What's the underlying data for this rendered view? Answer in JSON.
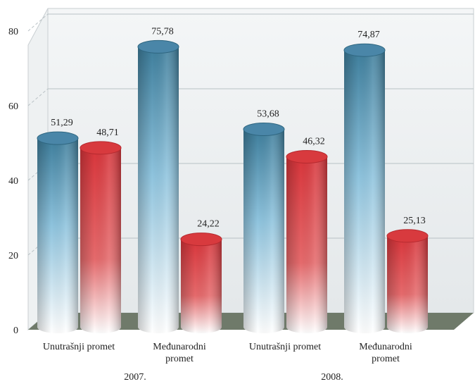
{
  "chart_data": {
    "type": "bar",
    "title": "",
    "xlabel": "",
    "ylabel": "",
    "ylim": [
      0,
      80
    ],
    "yticks": [
      0,
      20,
      40,
      60,
      80
    ],
    "grid": true,
    "groups": [
      {
        "label": "2007.",
        "categories": [
          "Unutrašnji promet",
          "Međunarodni promet"
        ],
        "pairs": [
          [
            51.29,
            48.71
          ],
          [
            75.78,
            24.22
          ]
        ],
        "value_labels": [
          [
            "51,29",
            "48,71"
          ],
          [
            "75,78",
            "24,22"
          ]
        ]
      },
      {
        "label": "2008.",
        "categories": [
          "Unutrašnji promet",
          "Međunarodni promet"
        ],
        "pairs": [
          [
            53.68,
            46.32
          ],
          [
            74.87,
            25.13
          ]
        ],
        "value_labels": [
          [
            "53,68",
            "46,32"
          ],
          [
            "74,87",
            "25,13"
          ]
        ]
      }
    ],
    "series_colors": [
      "#4a86a8",
      "#d83a3e"
    ]
  }
}
